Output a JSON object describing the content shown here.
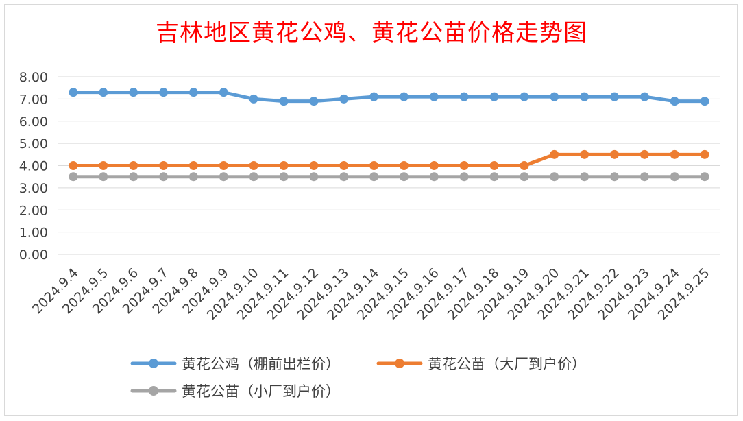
{
  "chart_data": {
    "type": "line",
    "title": "吉林地区黄花公鸡、黄花公苗价格走势图",
    "categories": [
      "2024.9.4",
      "2024.9.5",
      "2024.9.6",
      "2024.9.7",
      "2024.9.8",
      "2024.9.9",
      "2024.9.10",
      "2024.9.11",
      "2024.9.12",
      "2024.9.13",
      "2024.9.14",
      "2024.9.15",
      "2024.9.16",
      "2024.9.17",
      "2024.9.18",
      "2024.9.19",
      "2024.9.20",
      "2024.9.21",
      "2024.9.22",
      "2024.9.23",
      "2024.9.24",
      "2024.9.25"
    ],
    "series": [
      {
        "name": "黄花公鸡（棚前出栏价）",
        "color": "#5b9bd5",
        "values": [
          7.3,
          7.3,
          7.3,
          7.3,
          7.3,
          7.3,
          7.0,
          6.9,
          6.9,
          7.0,
          7.1,
          7.1,
          7.1,
          7.1,
          7.1,
          7.1,
          7.1,
          7.1,
          7.1,
          7.1,
          6.9,
          6.9
        ]
      },
      {
        "name": "黄花公苗（大厂到户价）",
        "color": "#ed7d31",
        "values": [
          4.0,
          4.0,
          4.0,
          4.0,
          4.0,
          4.0,
          4.0,
          4.0,
          4.0,
          4.0,
          4.0,
          4.0,
          4.0,
          4.0,
          4.0,
          4.0,
          4.5,
          4.5,
          4.5,
          4.5,
          4.5,
          4.5
        ]
      },
      {
        "name": "黄花公苗（小厂到户价）",
        "color": "#a5a5a5",
        "values": [
          3.5,
          3.5,
          3.5,
          3.5,
          3.5,
          3.5,
          3.5,
          3.5,
          3.5,
          3.5,
          3.5,
          3.5,
          3.5,
          3.5,
          3.5,
          3.5,
          3.5,
          3.5,
          3.5,
          3.5,
          3.5,
          3.5
        ]
      }
    ],
    "ylim": [
      0,
      8
    ],
    "y_ticks": [
      "0.00",
      "1.00",
      "2.00",
      "3.00",
      "4.00",
      "5.00",
      "6.00",
      "7.00",
      "8.00"
    ],
    "grid": true,
    "legend_position": "bottom"
  }
}
